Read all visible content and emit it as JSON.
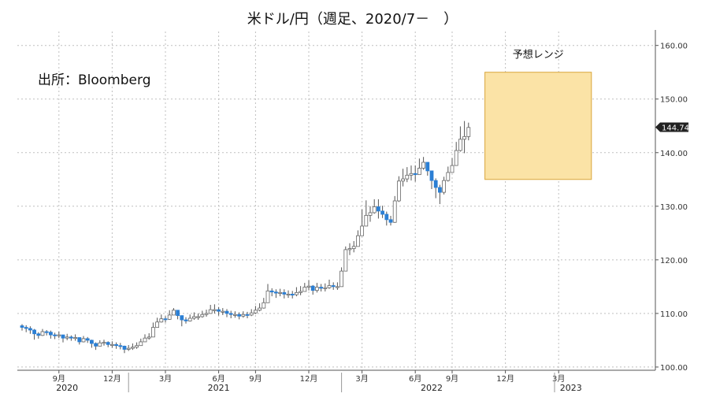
{
  "title": "米ドル/円（週足、2020/7－　）",
  "source_note": "出所：Bloomberg",
  "chart_data": {
    "type": "candlestick",
    "title": "米ドル/円（週足、2020/7－　）",
    "ylim": [
      100,
      160
    ],
    "y_ticks": [
      "100.00",
      "110.00",
      "120.00",
      "130.00",
      "140.00",
      "150.00",
      "160.00"
    ],
    "y_tick_values": [
      100,
      110,
      120,
      130,
      140,
      150,
      160
    ],
    "x_ticks": [
      "9月",
      "12月",
      "3月",
      "6月",
      "9月",
      "12月",
      "3月",
      "6月",
      "9月",
      "12月",
      "3月"
    ],
    "x_tick_weeks": [
      9,
      22,
      35,
      48,
      57,
      70,
      83,
      96,
      105,
      118,
      131
    ],
    "years": [
      "2020",
      "2021",
      "2022",
      "2023"
    ],
    "year_weeks": [
      11,
      48,
      100,
      134
    ],
    "year_separator_weeks": [
      26,
      78,
      130
    ],
    "last_price": "144.74",
    "last_value": 144.74,
    "up_color": "#ffffff",
    "down_color": "#2b7fd4",
    "forecast_range": {
      "label": "予想レンジ",
      "low": 135,
      "high": 155,
      "start_week": 113,
      "end_week": 139,
      "fill": "#fbe3a6",
      "border": "#d9a63b"
    },
    "weeks_total": 139,
    "closes": [
      107.4,
      107.2,
      106.9,
      106.2,
      105.9,
      106.6,
      106.5,
      106.0,
      105.9,
      106.0,
      105.4,
      105.6,
      105.4,
      105.5,
      104.7,
      105.3,
      105.0,
      104.4,
      103.9,
      104.5,
      104.6,
      104.2,
      104.2,
      104.0,
      103.9,
      103.3,
      103.5,
      103.7,
      104.0,
      104.7,
      105.4,
      105.6,
      107.4,
      108.4,
      109.0,
      108.9,
      109.7,
      110.6,
      109.6,
      108.8,
      108.6,
      109.1,
      109.4,
      109.4,
      109.8,
      110.0,
      110.7,
      110.7,
      110.4,
      110.4,
      110.0,
      109.8,
      109.8,
      109.5,
      109.8,
      109.7,
      110.1,
      110.6,
      111.0,
      112.0,
      114.2,
      114.0,
      113.8,
      113.9,
      113.6,
      113.6,
      113.5,
      113.9,
      114.1,
      114.9,
      115.1,
      114.3,
      114.9,
      114.7,
      114.8,
      115.2,
      115.0,
      115.0,
      117.9,
      121.9,
      122.1,
      122.5,
      124.5,
      126.3,
      128.3,
      128.8,
      129.9,
      129.1,
      128.5,
      127.5,
      127.0,
      131.0,
      134.7,
      135.1,
      135.8,
      136.1,
      135.9,
      137.1,
      138.2,
      136.6,
      134.8,
      133.5,
      132.6,
      134.8,
      136.3,
      137.6,
      140.4,
      142.5,
      143.0,
      144.7
    ],
    "highs": [
      108.0,
      107.8,
      107.6,
      107.1,
      106.5,
      107.1,
      106.9,
      106.8,
      106.4,
      106.6,
      106.0,
      106.2,
      105.9,
      106.1,
      105.4,
      105.8,
      105.6,
      105.1,
      104.6,
      105.0,
      105.1,
      104.8,
      104.8,
      104.6,
      104.5,
      104.0,
      104.1,
      104.4,
      104.6,
      105.3,
      106.1,
      106.3,
      108.3,
      109.2,
      109.8,
      109.5,
      110.6,
      111.0,
      110.3,
      109.5,
      109.3,
      109.8,
      110.2,
      110.0,
      110.5,
      110.7,
      111.6,
      111.7,
      111.2,
      111.0,
      110.8,
      110.5,
      110.4,
      110.2,
      110.4,
      110.3,
      110.8,
      111.4,
      111.9,
      112.9,
      115.5,
      114.7,
      114.5,
      114.6,
      114.5,
      114.3,
      114.2,
      114.9,
      115.1,
      115.7,
      116.2,
      115.3,
      115.7,
      115.5,
      115.6,
      116.3,
      115.8,
      115.8,
      118.6,
      122.5,
      123.1,
      123.5,
      125.5,
      129.4,
      131.1,
      130.0,
      131.3,
      131.3,
      130.1,
      129.0,
      128.2,
      131.9,
      135.6,
      137.0,
      137.3,
      137.6,
      137.6,
      138.9,
      139.2,
      138.0,
      136.0,
      135.2,
      134.0,
      135.5,
      137.4,
      139.0,
      142.0,
      144.9,
      145.9,
      145.6
    ],
    "lows": [
      106.8,
      106.5,
      106.2,
      105.1,
      105.3,
      105.8,
      105.9,
      105.3,
      105.2,
      105.4,
      104.6,
      105.0,
      104.9,
      104.9,
      104.2,
      104.6,
      104.5,
      103.6,
      103.2,
      103.9,
      104.0,
      103.7,
      103.6,
      103.4,
      103.3,
      102.6,
      103.0,
      103.2,
      103.4,
      104.0,
      104.8,
      105.1,
      106.3,
      107.5,
      108.3,
      108.3,
      108.8,
      109.8,
      108.9,
      107.6,
      108.1,
      108.5,
      108.8,
      108.8,
      109.2,
      109.4,
      110.0,
      110.0,
      109.6,
      109.7,
      109.3,
      109.1,
      109.2,
      108.9,
      109.2,
      109.1,
      109.5,
      109.9,
      110.4,
      110.9,
      112.7,
      113.2,
      112.9,
      113.2,
      112.8,
      112.9,
      112.8,
      113.2,
      113.4,
      114.2,
      114.3,
      113.5,
      113.9,
      114.1,
      114.1,
      114.6,
      114.4,
      114.4,
      116.3,
      119.0,
      120.9,
      121.4,
      122.6,
      124.9,
      126.3,
      127.1,
      128.6,
      127.7,
      127.8,
      126.4,
      126.4,
      126.9,
      130.8,
      133.7,
      134.5,
      134.8,
      134.6,
      136.0,
      136.8,
      135.7,
      133.2,
      131.5,
      130.4,
      132.2,
      134.6,
      136.6,
      138.2,
      140.2,
      139.9,
      142.3
    ]
  }
}
